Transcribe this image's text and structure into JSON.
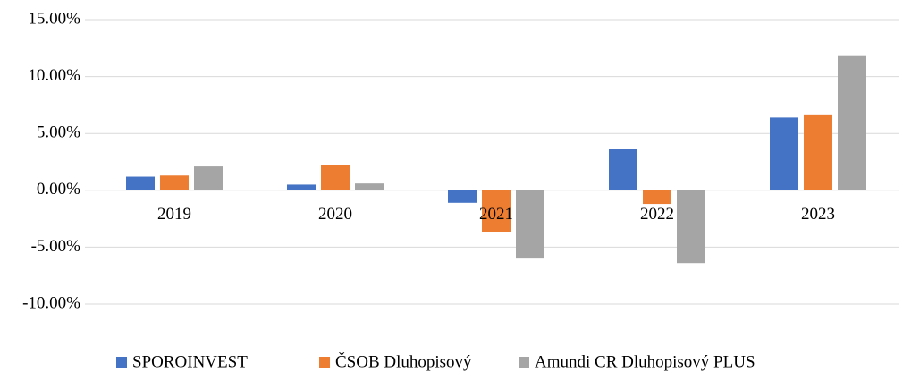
{
  "chart_data": {
    "type": "bar",
    "categories": [
      "2019",
      "2020",
      "2021",
      "2022",
      "2023"
    ],
    "series": [
      {
        "name": "SPOROINVEST",
        "color": "#4472c4",
        "values": [
          1.2,
          0.5,
          -1.1,
          3.6,
          6.4
        ]
      },
      {
        "name": "ČSOB Dluhopisový",
        "color": "#ed7d31",
        "values": [
          1.3,
          2.2,
          -3.7,
          -1.2,
          6.6
        ]
      },
      {
        "name": "Amundi CR Dluhopisový PLUS",
        "color": "#a5a5a5",
        "values": [
          2.1,
          0.6,
          -6.0,
          -6.4,
          11.8
        ]
      }
    ],
    "ylim": [
      -10,
      15
    ],
    "yticks": [
      {
        "value": -10,
        "label": "-10.00%"
      },
      {
        "value": -5,
        "label": "-5.00%"
      },
      {
        "value": 0,
        "label": "0.00%"
      },
      {
        "value": 5,
        "label": "5.00%"
      },
      {
        "value": 10,
        "label": "10.00%"
      },
      {
        "value": 15,
        "label": "15.00%"
      }
    ],
    "grid": true,
    "legend": "bottom"
  }
}
